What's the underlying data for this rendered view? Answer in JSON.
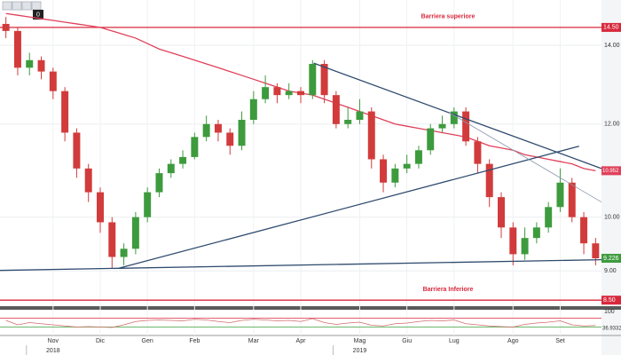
{
  "toolbar_label": "0",
  "chart_data": {
    "type": "candlestick",
    "categories": [
      null,
      null,
      null,
      null,
      "Nov",
      null,
      null,
      null,
      "Dic",
      null,
      null,
      null,
      "Gen",
      null,
      null,
      null,
      "Feb",
      null,
      null,
      null,
      null,
      "Mar",
      null,
      null,
      null,
      "Apr",
      null,
      null,
      null,
      null,
      "Mag",
      null,
      null,
      null,
      "Giu",
      null,
      null,
      null,
      "Lug",
      null,
      null,
      null,
      null,
      "Ago",
      null,
      null,
      null,
      "Set",
      null,
      null,
      null
    ],
    "year_labels": [
      null,
      null,
      null,
      null,
      "2018",
      null,
      null,
      null,
      null,
      null,
      null,
      null,
      null,
      null,
      null,
      null,
      null,
      null,
      null,
      null,
      null,
      null,
      null,
      null,
      null,
      null,
      null,
      null,
      null,
      null,
      "2019",
      null,
      null,
      null,
      null,
      null,
      null,
      null,
      null,
      null,
      null,
      null,
      null,
      null,
      null,
      null,
      null,
      null,
      null,
      null,
      null
    ],
    "open": [
      14.6,
      14.4,
      13.4,
      13.6,
      13.3,
      12.8,
      11.8,
      11.0,
      10.5,
      9.9,
      9.25,
      9.4,
      10.0,
      10.5,
      10.9,
      11.1,
      11.25,
      11.7,
      12.0,
      11.8,
      11.5,
      12.1,
      12.6,
      12.9,
      12.7,
      12.8,
      12.7,
      13.5,
      12.7,
      12.0,
      12.1,
      12.3,
      11.2,
      10.7,
      11.0,
      11.1,
      11.4,
      11.9,
      12.0,
      12.3,
      11.6,
      11.1,
      10.4,
      9.8,
      9.3,
      9.6,
      9.8,
      10.2,
      10.7,
      10.0,
      9.5
    ],
    "high": [
      14.8,
      14.5,
      13.8,
      13.7,
      13.4,
      12.9,
      11.9,
      11.1,
      10.6,
      10.0,
      9.5,
      10.1,
      10.6,
      11.0,
      11.2,
      11.4,
      11.8,
      12.2,
      12.1,
      11.9,
      12.3,
      12.8,
      13.2,
      13.0,
      13.0,
      12.9,
      13.6,
      13.6,
      12.8,
      12.4,
      12.6,
      12.4,
      11.3,
      11.1,
      11.3,
      11.5,
      12.0,
      12.2,
      12.4,
      12.4,
      11.7,
      11.2,
      10.5,
      9.9,
      9.8,
      9.9,
      10.3,
      11.0,
      10.8,
      10.1,
      9.6
    ],
    "low": [
      14.2,
      13.2,
      13.2,
      13.1,
      12.6,
      11.6,
      10.8,
      10.3,
      9.7,
      9.05,
      9.1,
      9.3,
      9.9,
      10.4,
      10.8,
      11.0,
      11.2,
      11.6,
      11.6,
      11.3,
      11.4,
      12.0,
      12.5,
      12.5,
      12.6,
      12.5,
      12.6,
      12.5,
      11.9,
      11.9,
      12.0,
      11.0,
      10.5,
      10.6,
      10.9,
      11.0,
      11.3,
      11.8,
      11.9,
      11.5,
      10.9,
      10.2,
      9.6,
      9.1,
      9.2,
      9.5,
      9.7,
      10.1,
      9.9,
      9.3,
      9.1
    ],
    "close": [
      14.4,
      13.4,
      13.6,
      13.3,
      12.8,
      11.8,
      11.0,
      10.5,
      9.9,
      9.25,
      9.4,
      10.0,
      10.5,
      10.9,
      11.1,
      11.25,
      11.7,
      12.0,
      11.8,
      11.5,
      12.1,
      12.6,
      12.9,
      12.7,
      12.8,
      12.7,
      13.5,
      12.7,
      12.0,
      12.1,
      12.3,
      11.2,
      10.7,
      11.0,
      11.1,
      11.4,
      11.9,
      12.0,
      12.3,
      11.6,
      11.1,
      10.4,
      9.8,
      9.3,
      9.6,
      9.8,
      10.2,
      10.7,
      10.0,
      9.5,
      9.226
    ],
    "up_color": "#3d9b3d",
    "down_color": "#d23b3b",
    "moving_average": {
      "color": "#e0405a",
      "values": [
        14.9,
        14.85,
        14.8,
        14.75,
        14.7,
        14.65,
        14.6,
        14.55,
        14.5,
        14.4,
        14.3,
        14.2,
        14.05,
        13.9,
        13.8,
        13.7,
        13.6,
        13.5,
        13.4,
        13.3,
        13.2,
        13.1,
        13.0,
        12.9,
        12.8,
        12.75,
        12.7,
        12.6,
        12.5,
        12.4,
        12.3,
        12.2,
        12.1,
        12.0,
        11.95,
        11.9,
        11.85,
        11.8,
        11.75,
        11.7,
        11.6,
        11.5,
        11.45,
        11.4,
        11.3,
        11.25,
        11.2,
        11.15,
        11.1,
        11.0,
        10.952
      ]
    },
    "trendlines": [
      {
        "color": "#2f4b6e",
        "from": [
          -0.5,
          9.01
        ],
        "to": [
          50.5,
          9.2
        ]
      },
      {
        "color": "#2f4b6e",
        "from": [
          9.6,
          9.05
        ],
        "to": [
          48.6,
          11.49
        ]
      },
      {
        "color": "#2f4b6e",
        "from": [
          26.1,
          13.52
        ],
        "to": [
          50.5,
          11.0
        ]
      },
      {
        "color": "#8a9aae",
        "from": [
          37.6,
          12.27
        ],
        "to": [
          50.5,
          10.3
        ]
      }
    ],
    "barriers": [
      {
        "value": 14.5,
        "label": "14.50",
        "name": "Barriera superiore"
      },
      {
        "value": 8.5,
        "label": "8.50",
        "name": "Barriera Inferiore"
      }
    ],
    "barrier_color": "#d8283c",
    "log_scale": true,
    "ylim": [
      8.4,
      15.3
    ],
    "yticks": [
      {
        "value": 9,
        "label": "9.00"
      },
      {
        "value": 10,
        "label": "10.00"
      },
      {
        "value": 12,
        "label": "12.00"
      },
      {
        "value": 14,
        "label": "14.00"
      }
    ],
    "grid": true,
    "oscillator": {
      "values": [
        60,
        40,
        50,
        45,
        40,
        35,
        30,
        32,
        30,
        28,
        40,
        55,
        60,
        62,
        60,
        58,
        65,
        62,
        55,
        50,
        60,
        65,
        62,
        58,
        60,
        55,
        68,
        50,
        42,
        48,
        52,
        38,
        35,
        45,
        48,
        55,
        60,
        58,
        62,
        45,
        40,
        35,
        32,
        30,
        42,
        48,
        52,
        58,
        40,
        35,
        36.9332
      ],
      "color": "#d26a6a",
      "ylim": [
        0,
        100
      ],
      "yticks": [
        100
      ],
      "levels": [
        30,
        70
      ],
      "level_colors": [
        "#3aa03a",
        "#d8283c"
      ]
    }
  }
}
